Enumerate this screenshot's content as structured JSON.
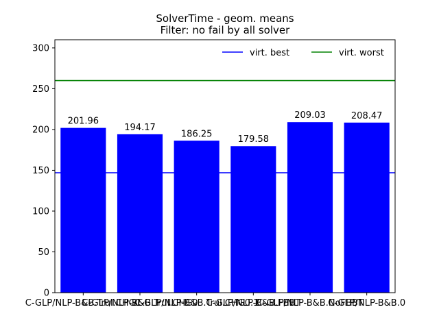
{
  "chart_data": {
    "type": "bar",
    "title": "SolverTime - geom. means",
    "subtitle": "Filter: no fail by all solver",
    "categories": [
      "C-GLP/NLP-B&B.Trul.CHG1",
      "C-GLP/NLP-B&B.Trul.CHG0",
      "C-GLP/NLP-B&B.Trul.CHG0.1",
      "C-GLP/NLP-B&B.FBBT",
      "C-GLP/NLP-B&B.NoFBBT",
      "C-GLP/NLP-B&B.0"
    ],
    "values": [
      201.96,
      194.17,
      186.25,
      179.58,
      209.03,
      208.47
    ],
    "value_labels": [
      "201.96",
      "194.17",
      "186.25",
      "179.58",
      "209.03",
      "208.47"
    ],
    "bar_color": "#0000ff",
    "ylim": [
      0,
      310
    ],
    "yticks": [
      0,
      50,
      100,
      150,
      200,
      250,
      300
    ],
    "reference_lines": [
      {
        "name": "virt. best",
        "value": 147,
        "color": "#0000ff"
      },
      {
        "name": "virt. worst",
        "value": 260,
        "color": "#008000"
      }
    ],
    "legend_position": "upper right",
    "grid": false
  }
}
